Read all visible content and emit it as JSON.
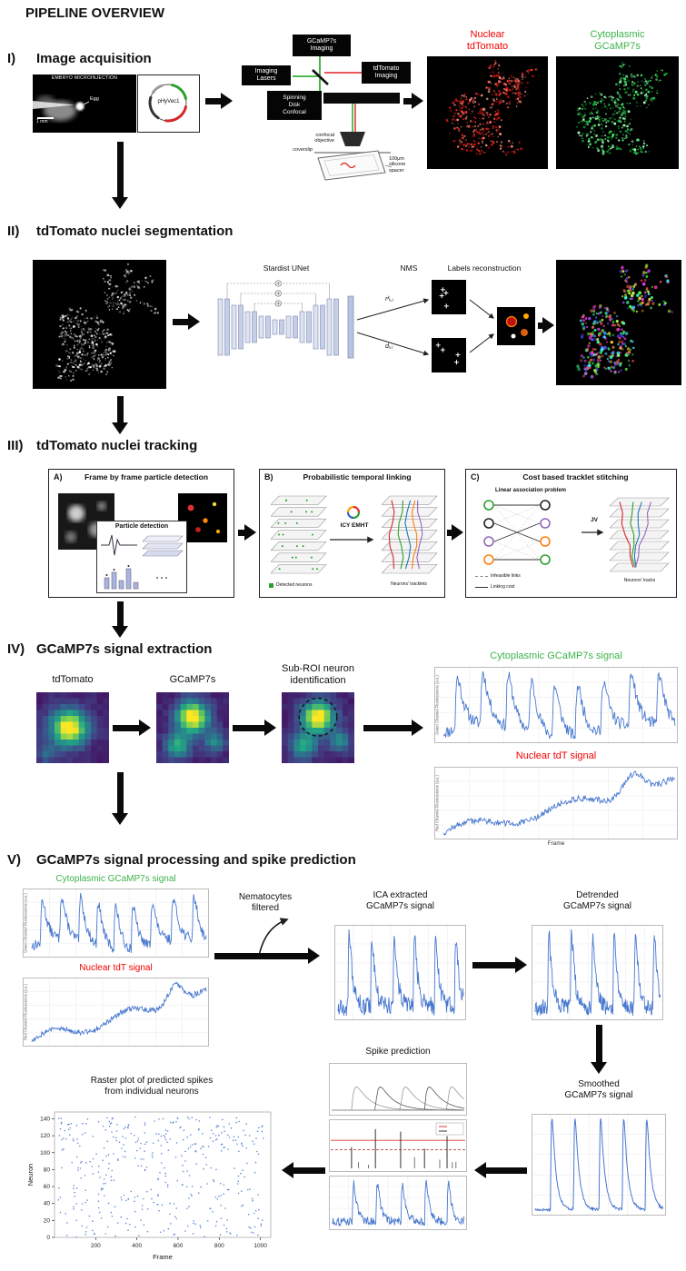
{
  "colors": {
    "red": "#f40000",
    "green": "#3cb44b",
    "blue": "#4878cf"
  },
  "title": "PIPELINE OVERVIEW",
  "s1": {
    "numeral": "I)",
    "heading": "Image acquisition",
    "embryo_caption": "EMBRYO MICROINJECTION",
    "egg_label": "Egg",
    "scale_label": "1 mm",
    "plasmid_name": "pHyVec1",
    "box_gcamp": "GCaMP7s\nImaging",
    "box_lasers": "Imaging\nLasers",
    "box_tdtomato": "tdTomato\nImaging",
    "box_spinning": "Spinning\nDisk\nConfocal",
    "lbl_objective": "confocal\nobjective",
    "lbl_coverslip": "coverslip",
    "lbl_spacer": "100μm\nsilicone\nspacer",
    "out_nuclear": "Nuclear\ntdTomato",
    "out_cyto": "Cytoplasmic\nGCaMP7s"
  },
  "s2": {
    "numeral": "II)",
    "heading": "tdTomato nuclei segmentation",
    "unet_label": "Stardist UNet",
    "nms_label": "NMS",
    "out_r": "rᵏᵢ,ⱼ",
    "out_d": "dᵢ,ⱼ",
    "labels_recon": "Labels reconstruction"
  },
  "s3": {
    "numeral": "III)",
    "heading": "tdTomato nuclei tracking",
    "a_letter": "A)",
    "a_title": "Frame by frame particle detection",
    "a_inset": "Particle detection",
    "b_letter": "B)",
    "b_title": "Probabilistic temporal linking",
    "b_legend": "Detected neurons",
    "b_method": "ICY EMHT",
    "b_result": "Neurons' tracklets",
    "c_letter": "C)",
    "c_title": "Cost based tracklet stitching",
    "c_problem": "Linear association problem",
    "c_method": "JV",
    "c_result": "Neurons' tracks",
    "c_leg_dashed": "Infeasible links",
    "c_leg_solid": "Linking cost"
  },
  "s4": {
    "numeral": "IV)",
    "heading": "GCaMP7s signal extraction",
    "map1": "tdTomato",
    "map2": "GCaMP7s",
    "map3": "Sub-ROI neuron\nidentification",
    "plot_cyto_title": "Cytoplasmic GCaMP7s signal",
    "plot_tdt_title": "Nuclear tdT signal",
    "xlabel": "Frame",
    "ylabel_green": "Green Channel Fluorescence (a.u.)",
    "ylabel_red": "Red Channel Fluorescence (a.u.)"
  },
  "s5": {
    "numeral": "V)",
    "heading": "GCaMP7s signal processing and spike prediction",
    "plot_cyto_title": "Cytoplasmic GCaMP7s signal",
    "plot_tdt_title": "Nuclear tdT signal",
    "filter_label": "Nematocytes\nfiltered",
    "ica_title": "ICA extracted\nGCaMP7s signal",
    "detrended_title": "Detrended\nGCaMP7s signal",
    "smoothed_title": "Smoothed\nGCaMP7s signal",
    "spike_title": "Spike prediction",
    "raster_title": "Raster plot of predicted spikes\nfrom individual neurons",
    "raster_xlabel": "Frame",
    "raster_ylabel": "Neuron",
    "raster_xticks": [
      200,
      400,
      600,
      800,
      1000
    ],
    "raster_yticks": [
      0,
      20,
      40,
      60,
      80,
      100,
      120,
      140
    ]
  }
}
